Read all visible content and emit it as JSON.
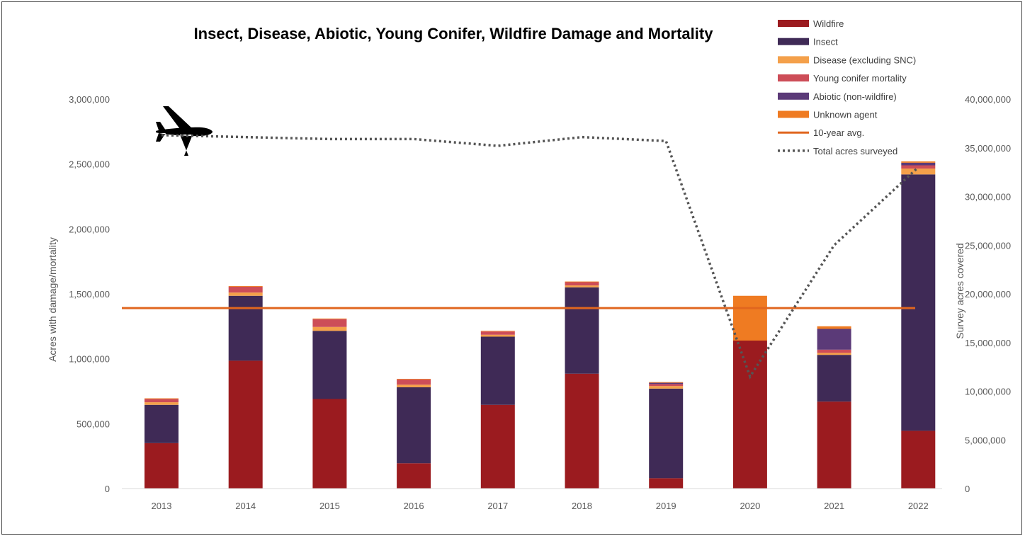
{
  "chart_data": {
    "type": "bar",
    "title": "Insect, Disease, Abiotic, Young Conifer, Wildfire Damage and Mortality",
    "ylabel": "Acres with damage/mortality",
    "y2label": "Survey acres covered",
    "ylim": [
      0,
      3000000
    ],
    "y2lim": [
      0,
      40000000
    ],
    "yticks": [
      "0",
      "500,000",
      "1,000,000",
      "1,500,000",
      "2,000,000",
      "2,500,000",
      "3,000,000"
    ],
    "y2ticks": [
      "0",
      "5,000,000",
      "10,000,000",
      "15,000,000",
      "20,000,000",
      "25,000,000",
      "30,000,000",
      "35,000,000",
      "40,000,000"
    ],
    "categories": [
      "2013",
      "2014",
      "2015",
      "2016",
      "2017",
      "2018",
      "2019",
      "2020",
      "2021",
      "2022"
    ],
    "stacked": true,
    "series": [
      {
        "name": "Wildfire",
        "color": "#9b1b1f",
        "values": [
          350000,
          985000,
          690000,
          195000,
          645000,
          885000,
          80000,
          1140000,
          670000,
          445000
        ]
      },
      {
        "name": "Insect",
        "color": "#3f2a56",
        "values": [
          295000,
          500000,
          525000,
          585000,
          525000,
          665000,
          690000,
          0,
          360000,
          1975000
        ]
      },
      {
        "name": "Disease (excluding SNC)",
        "color": "#f4a04a",
        "values": [
          20000,
          25000,
          30000,
          20000,
          15000,
          15000,
          20000,
          0,
          15000,
          45000
        ]
      },
      {
        "name": "Young conifer mortality",
        "color": "#cd4d58",
        "values": [
          25000,
          45000,
          60000,
          40000,
          25000,
          25000,
          15000,
          0,
          25000,
          25000
        ]
      },
      {
        "name": "Abiotic (non-wildfire)",
        "color": "#5b3a78",
        "values": [
          0,
          0,
          0,
          0,
          0,
          0,
          10000,
          0,
          160000,
          20000
        ]
      },
      {
        "name": "Unknown agent",
        "color": "#ef7b22",
        "values": [
          5000,
          5000,
          5000,
          5000,
          5000,
          5000,
          5000,
          345000,
          20000,
          10000
        ]
      }
    ],
    "reference_line": {
      "name": "10-year avg.",
      "value": 1390000,
      "color": "#e0661f"
    },
    "secondary_line": {
      "name": "Total acres surveyed",
      "axis": "right",
      "style": "dotted",
      "color": "#555555",
      "values": [
        36300000,
        36100000,
        35900000,
        35900000,
        35200000,
        36100000,
        35700000,
        11500000,
        25000000,
        33000000
      ]
    },
    "legend_position": "top-right",
    "grid": false,
    "icon": "airplane-icon"
  }
}
